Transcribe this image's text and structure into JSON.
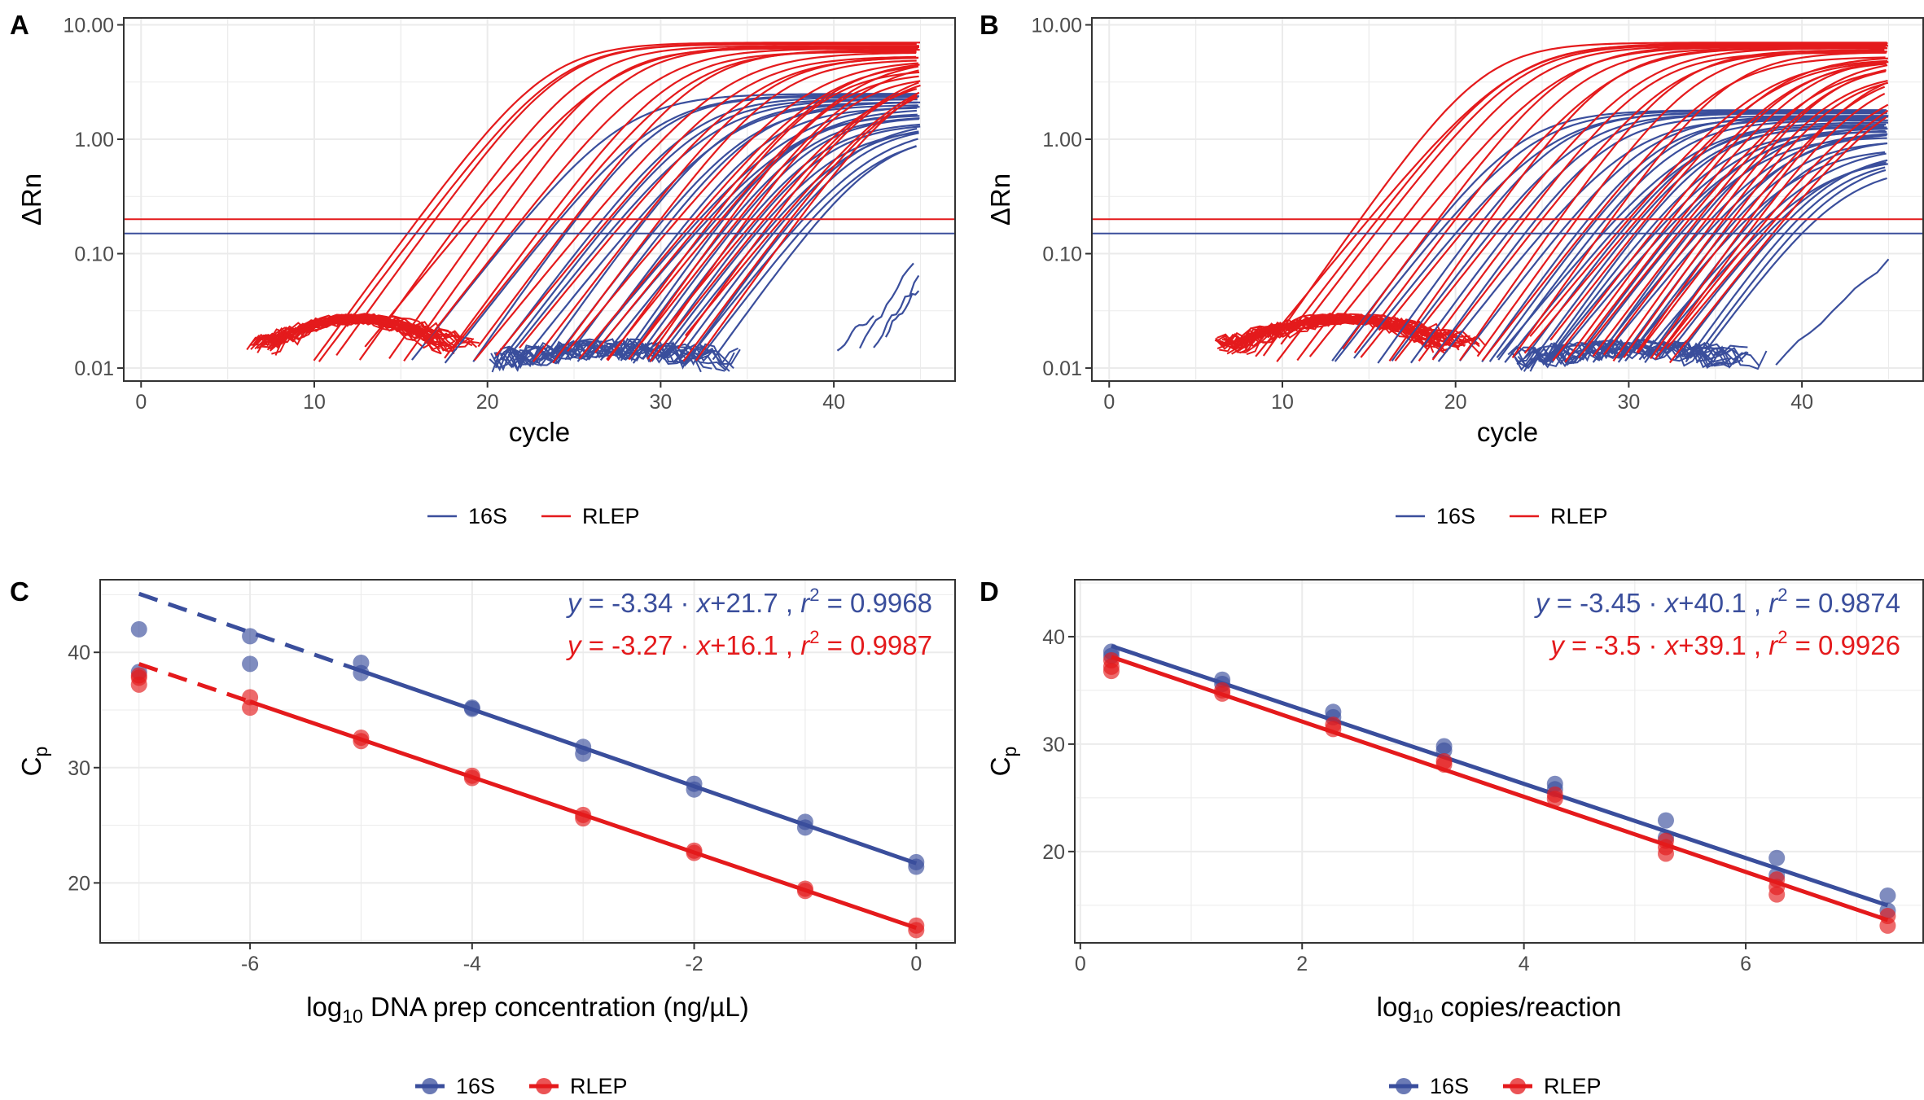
{
  "colors": {
    "s16": "#3a4e9c",
    "rlep": "#e41a1c",
    "grid": "#ebebeb",
    "border": "#333333"
  },
  "legend": {
    "items": [
      "16S",
      "RLEP"
    ]
  },
  "chart_data": [
    {
      "panel": "A",
      "type": "line",
      "y_scale": "log10",
      "xlabel": "cycle",
      "ylabel": "ΔRn",
      "xlim": [
        -1,
        47
      ],
      "ylim": [
        0.0077,
        11.5
      ],
      "x_ticks": [
        0,
        10,
        20,
        30,
        40
      ],
      "x_tick_labels": [
        "0",
        "10",
        "20",
        "30",
        "40"
      ],
      "y_ticks": [
        0.01,
        0.1,
        1,
        10
      ],
      "y_tick_labels": [
        "0.01",
        "0.10",
        "1.00",
        "10.00"
      ],
      "grid": true,
      "legend_position": "bottom",
      "thresholds": [
        {
          "name": "RLEP",
          "value": 0.2
        },
        {
          "name": "16S",
          "value": 0.15
        }
      ],
      "series": [
        {
          "name": "16S",
          "ct": [
            21.5,
            23.5,
            24.5,
            26,
            26.5,
            27,
            28,
            28.5,
            29.5,
            30,
            31,
            31.5,
            32,
            32.5,
            33,
            33.5,
            34,
            34.5,
            35,
            35.5,
            36,
            36.5,
            37,
            37.5,
            38,
            38.5
          ],
          "plateau_max": 2.5,
          "plateau_min": 0.8,
          "baseline_range": [
            20,
            35
          ],
          "late_x": [
            [
              40.2,
              42.3
            ],
            [
              41.5,
              44.6
            ],
            [
              42.3,
              44.9
            ],
            [
              43,
              44.9
            ]
          ],
          "late_y": [
            [
              0.015,
              0.03
            ],
            [
              0.015,
              0.085
            ],
            [
              0.016,
              0.06
            ],
            [
              0.02,
              0.05
            ]
          ]
        },
        {
          "name": "RLEP",
          "ct": [
            16,
            16.5,
            17,
            18.5,
            19,
            20,
            21,
            22,
            23.5,
            24,
            25,
            26,
            27,
            28,
            29,
            30,
            31,
            32,
            32.5,
            33,
            33.5,
            34,
            34.5,
            35,
            35.5,
            36,
            36.5,
            37,
            37.5,
            38
          ],
          "plateau_max": 7,
          "plateau_min": 2.5,
          "baseline_range": [
            6,
            20
          ]
        }
      ]
    },
    {
      "panel": "B",
      "type": "line",
      "y_scale": "log10",
      "xlabel": "cycle",
      "ylabel": "ΔRn",
      "xlim": [
        -1,
        47
      ],
      "ylim": [
        0.0077,
        11.5
      ],
      "x_ticks": [
        0,
        10,
        20,
        30,
        40
      ],
      "x_tick_labels": [
        "0",
        "10",
        "20",
        "30",
        "40"
      ],
      "y_ticks": [
        0.01,
        0.1,
        1,
        10
      ],
      "y_tick_labels": [
        "0.01",
        "0.10",
        "1.00",
        "10.00"
      ],
      "grid": true,
      "legend_position": "bottom",
      "thresholds": [
        {
          "name": "RLEP",
          "value": 0.2
        },
        {
          "name": "16S",
          "value": 0.15
        }
      ],
      "series": [
        {
          "name": "16S",
          "ct": [
            18.5,
            19,
            20,
            21,
            22,
            23,
            24,
            25,
            26,
            27,
            27.5,
            28,
            28.5,
            29,
            29.5,
            30,
            30.5,
            31,
            31.5,
            32,
            32.5,
            33,
            33.5,
            34,
            34.5,
            35,
            35.5,
            36,
            36.5,
            37,
            37.5,
            38,
            38.5,
            39,
            39.5,
            40
          ],
          "plateau_max": 1.8,
          "plateau_min": 0.5,
          "baseline_range": [
            23,
            38
          ],
          "late_x": [
            [
              38.5,
              45
            ]
          ],
          "late_y": [
            [
              0.011,
              0.088
            ]
          ]
        },
        {
          "name": "RLEP",
          "ct": [
            14.5,
            15,
            15.5,
            16,
            17,
            18,
            19,
            20,
            21,
            22,
            23,
            24,
            25,
            26,
            27,
            28,
            29,
            30,
            30.5,
            31,
            32,
            32.5,
            33,
            33.5,
            34,
            34.5,
            35,
            35.5,
            36,
            36.5,
            37,
            37.5,
            38,
            38.5,
            39
          ],
          "plateau_max": 7,
          "plateau_min": 3,
          "baseline_range": [
            6,
            22
          ]
        }
      ]
    },
    {
      "panel": "C",
      "type": "scatter",
      "xlabel": "DNA prep concentration (ng/µL)",
      "xlabel_prefix": "log",
      "xlabel_sub": "10",
      "ylabel": "C",
      "ylabel_sub": "p",
      "xlim": [
        -7.35,
        0.35
      ],
      "ylim": [
        14.8,
        46.3
      ],
      "x_ticks": [
        -6,
        -4,
        -2,
        0
      ],
      "x_tick_labels": [
        "-6",
        "-4",
        "-2",
        "0"
      ],
      "y_ticks": [
        20,
        30,
        40
      ],
      "y_tick_labels": [
        "20",
        "30",
        "40"
      ],
      "grid": true,
      "legend_position": "bottom",
      "series": [
        {
          "name": "16S",
          "x": [
            -7,
            -7,
            -6,
            -6,
            -5,
            -5,
            -4,
            -4,
            -3,
            -3,
            -2,
            -2,
            -1,
            -1,
            0,
            0
          ],
          "y": [
            42,
            38.3,
            41.4,
            39,
            39.1,
            38.2,
            35.1,
            35.2,
            31.8,
            31.2,
            28.6,
            28.1,
            25.3,
            24.8,
            21.8,
            21.4
          ],
          "fit": {
            "slope": -3.34,
            "intercept": 21.7,
            "fit_range": [
              -5,
              0
            ],
            "extrapolated_range": [
              -7,
              -5
            ]
          },
          "equation": {
            "lhs": "y",
            "rhs": " = -3.34 · ",
            "var": "x",
            "const": "+21.7 ,  ",
            "r": "r",
            "exp": "2",
            "r2": " = 0.9968"
          }
        },
        {
          "name": "RLEP",
          "x": [
            -7,
            -7,
            -7,
            -6,
            -6,
            -5,
            -5,
            -4,
            -4,
            -3,
            -3,
            -2,
            -2,
            -1,
            -1,
            0,
            0
          ],
          "y": [
            38,
            37.2,
            37.8,
            36.1,
            35.2,
            32.6,
            32.3,
            29.3,
            29.1,
            25.9,
            25.6,
            22.8,
            22.6,
            19.5,
            19.3,
            16.3,
            15.9
          ],
          "fit": {
            "slope": -3.27,
            "intercept": 16.1,
            "fit_range": [
              -6,
              0
            ],
            "extrapolated_range": [
              -7,
              -6
            ]
          },
          "equation": {
            "lhs": "y",
            "rhs": " = -3.27 · ",
            "var": "x",
            "const": "+16.1 ,  ",
            "r": "r",
            "exp": "2",
            "r2": " = 0.9987"
          }
        }
      ]
    },
    {
      "panel": "D",
      "type": "scatter",
      "xlabel": "copies/reaction",
      "xlabel_prefix": "log",
      "xlabel_sub": "10",
      "ylabel": "C",
      "ylabel_sub": "p",
      "xlim": [
        -0.05,
        7.6
      ],
      "ylim": [
        11.5,
        45.3
      ],
      "x_ticks": [
        0,
        2,
        4,
        6
      ],
      "x_tick_labels": [
        "0",
        "2",
        "4",
        "6"
      ],
      "y_ticks": [
        20,
        30,
        40
      ],
      "y_tick_labels": [
        "20",
        "30",
        "40"
      ],
      "grid": true,
      "legend_position": "bottom",
      "series": [
        {
          "name": "16S",
          "x": [
            0.28,
            0.28,
            1.28,
            1.28,
            2.28,
            2.28,
            3.28,
            3.28,
            4.28,
            4.28,
            5.28,
            5.28,
            6.28,
            6.28,
            7.28,
            7.28
          ],
          "y": [
            38.6,
            38.2,
            36,
            35.6,
            33,
            32.5,
            29.8,
            29.4,
            26.3,
            25.8,
            22.9,
            21.3,
            19.4,
            17.8,
            15.9,
            14.5
          ],
          "fit": {
            "slope": -3.45,
            "intercept": 40.1,
            "fit_range": [
              0.28,
              7.28
            ]
          },
          "equation": {
            "lhs": "y",
            "rhs": " = -3.45 · ",
            "var": "x",
            "const": "+40.1 ,  ",
            "r": "r",
            "exp": "2",
            "r2": " = 0.9874"
          }
        },
        {
          "name": "RLEP",
          "x": [
            0.28,
            0.28,
            0.28,
            1.28,
            1.28,
            2.28,
            2.28,
            3.28,
            3.28,
            4.28,
            4.28,
            5.28,
            5.28,
            5.28,
            6.28,
            6.28,
            6.28,
            7.28,
            7.28
          ],
          "y": [
            37.8,
            37.2,
            36.8,
            35,
            34.7,
            31.8,
            31.4,
            28.4,
            28.1,
            25.3,
            24.9,
            21,
            20.4,
            19.8,
            17.4,
            16.7,
            16,
            14,
            13.1
          ],
          "fit": {
            "slope": -3.5,
            "intercept": 39.1,
            "fit_range": [
              0.28,
              7.28
            ]
          },
          "equation": {
            "lhs": "y",
            "rhs": " = -3.5 · ",
            "var": "x",
            "const": "+39.1 ,  ",
            "r": "r",
            "exp": "2",
            "r2": " = 0.9926"
          }
        }
      ]
    }
  ]
}
